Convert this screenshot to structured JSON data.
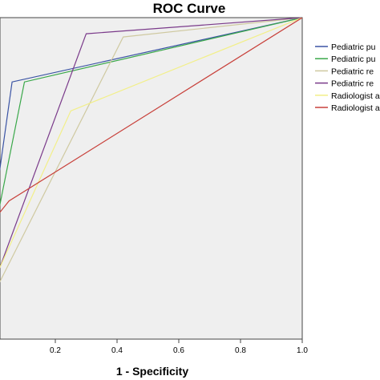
{
  "chart_data": {
    "type": "line",
    "title": "ROC Curve",
    "xlabel": "1 - Specificity",
    "ylabel": "",
    "xlim": [
      0,
      1
    ],
    "ylim": [
      0,
      1
    ],
    "xticks": [
      "0.2",
      "0.4",
      "0.6",
      "0.8",
      "1.0"
    ],
    "grid": false,
    "legend_position": "right",
    "series": [
      {
        "name": "Pediatric pu",
        "color": "#3a53a4",
        "x": [
          0,
          0.06,
          1
        ],
        "y": [
          0.39,
          0.8,
          1
        ]
      },
      {
        "name": "Pediatric pu",
        "color": "#3aa84a",
        "x": [
          0,
          0.1,
          1
        ],
        "y": [
          0.32,
          0.8,
          1
        ]
      },
      {
        "name": "Pediatric re",
        "color": "#cfc9a0",
        "x": [
          0,
          0.42,
          1
        ],
        "y": [
          0.14,
          0.94,
          1
        ]
      },
      {
        "name": "Pediatric re",
        "color": "#7a3a8a",
        "x": [
          0,
          0.3,
          1
        ],
        "y": [
          0.17,
          0.95,
          1
        ]
      },
      {
        "name": "Radiologist a",
        "color": "#f2ef88",
        "x": [
          0,
          0.25,
          1
        ],
        "y": [
          0.18,
          0.71,
          1
        ]
      },
      {
        "name": "Radiologist a",
        "color": "#c8403a",
        "x": [
          0,
          0.05,
          1
        ],
        "y": [
          0.37,
          0.43,
          1
        ]
      }
    ]
  }
}
